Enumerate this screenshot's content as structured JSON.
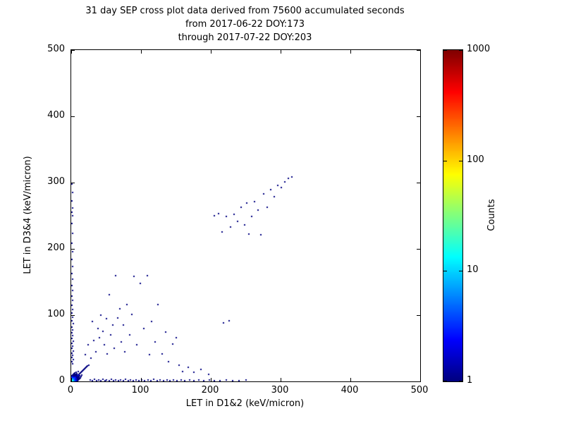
{
  "chart_data": {
    "type": "scatter",
    "title": "31 day SEP cross plot data derived from 75600 accumulated seconds",
    "subtitle1": "from 2017-06-22 DOY:173",
    "subtitle2": "through 2017-07-22 DOY:203",
    "xlabel": "LET in D1&2 (keV/micron)",
    "ylabel": "LET in D3&4 (keV/micron)",
    "xlim": [
      0,
      500
    ],
    "ylim": [
      0,
      500
    ],
    "x_ticks": [
      0,
      100,
      200,
      300,
      400,
      500
    ],
    "y_ticks": [
      0,
      100,
      200,
      300,
      400,
      500
    ],
    "grid": false,
    "colorbar": {
      "label": "Counts",
      "scale": "log",
      "range": [
        1,
        1000
      ],
      "ticks": [
        1,
        10,
        100,
        1000
      ],
      "colormap": "jet"
    },
    "marker_color_low": "#000080",
    "marker_color_high": "#800000",
    "points": [
      [
        0,
        0,
        30
      ],
      [
        1,
        0,
        25
      ],
      [
        0,
        1,
        25
      ],
      [
        1,
        1,
        22
      ],
      [
        2,
        0,
        20
      ],
      [
        0,
        2,
        20
      ],
      [
        2,
        1,
        18
      ],
      [
        1,
        2,
        18
      ],
      [
        2,
        2,
        15
      ],
      [
        3,
        0,
        14
      ],
      [
        0,
        3,
        14
      ],
      [
        3,
        1,
        12
      ],
      [
        1,
        3,
        12
      ],
      [
        3,
        2,
        10
      ],
      [
        2,
        3,
        10
      ],
      [
        3,
        3,
        9
      ],
      [
        4,
        0,
        9
      ],
      [
        0,
        4,
        9
      ],
      [
        4,
        1,
        8
      ],
      [
        1,
        4,
        8
      ],
      [
        4,
        2,
        7
      ],
      [
        2,
        4,
        7
      ],
      [
        4,
        3,
        6
      ],
      [
        3,
        4,
        6
      ],
      [
        4,
        4,
        6
      ],
      [
        5,
        0,
        6
      ],
      [
        0,
        5,
        6
      ],
      [
        5,
        1,
        5
      ],
      [
        1,
        5,
        5
      ],
      [
        5,
        2,
        5
      ],
      [
        2,
        5,
        5
      ],
      [
        5,
        3,
        4
      ],
      [
        3,
        5,
        4
      ],
      [
        5,
        5,
        4
      ],
      [
        6,
        0,
        4
      ],
      [
        0,
        6,
        4
      ],
      [
        6,
        2,
        3
      ],
      [
        2,
        6,
        3
      ],
      [
        6,
        4,
        3
      ],
      [
        4,
        6,
        3
      ],
      [
        6,
        6,
        3
      ],
      [
        7,
        1,
        3
      ],
      [
        1,
        7,
        3
      ],
      [
        7,
        3,
        2
      ],
      [
        3,
        7,
        2
      ],
      [
        7,
        5,
        2
      ],
      [
        5,
        7,
        2
      ],
      [
        7,
        7,
        2
      ],
      [
        8,
        0,
        2
      ],
      [
        0,
        8,
        2
      ],
      [
        8,
        2,
        2
      ],
      [
        2,
        8,
        2
      ],
      [
        8,
        4,
        2
      ],
      [
        4,
        8,
        2
      ],
      [
        8,
        6,
        1
      ],
      [
        6,
        8,
        1
      ],
      [
        8,
        8,
        2
      ],
      [
        9,
        1,
        1
      ],
      [
        1,
        9,
        1
      ],
      [
        9,
        3,
        1
      ],
      [
        3,
        9,
        1
      ],
      [
        9,
        5,
        1
      ],
      [
        5,
        9,
        1
      ],
      [
        9,
        7,
        1
      ],
      [
        7,
        9,
        1
      ],
      [
        9,
        9,
        2
      ],
      [
        10,
        2,
        1
      ],
      [
        2,
        10,
        1
      ],
      [
        10,
        5,
        1
      ],
      [
        5,
        10,
        1
      ],
      [
        10,
        8,
        1
      ],
      [
        8,
        10,
        1
      ],
      [
        10,
        10,
        2
      ],
      [
        11,
        3,
        1
      ],
      [
        3,
        11,
        1
      ],
      [
        11,
        6,
        1
      ],
      [
        6,
        11,
        1
      ],
      [
        11,
        11,
        1
      ],
      [
        12,
        4,
        1
      ],
      [
        4,
        12,
        1
      ],
      [
        12,
        8,
        1
      ],
      [
        8,
        12,
        1
      ],
      [
        12,
        12,
        1
      ],
      [
        13,
        5,
        1
      ],
      [
        5,
        13,
        1
      ],
      [
        13,
        13,
        1
      ],
      [
        14,
        7,
        1
      ],
      [
        7,
        14,
        1
      ],
      [
        14,
        14,
        1
      ],
      [
        15,
        10,
        1
      ],
      [
        10,
        15,
        1
      ],
      [
        15,
        15,
        1
      ],
      [
        16,
        16,
        1
      ],
      [
        17,
        17,
        1
      ],
      [
        18,
        18,
        1
      ],
      [
        19,
        19,
        1
      ],
      [
        20,
        20,
        1
      ],
      [
        21,
        21,
        1
      ],
      [
        22,
        22,
        1
      ],
      [
        23,
        23,
        1
      ],
      [
        25,
        25,
        1
      ],
      [
        27,
        2,
        1
      ],
      [
        30,
        1,
        1
      ],
      [
        33,
        3,
        1
      ],
      [
        36,
        1,
        1
      ],
      [
        39,
        2,
        1
      ],
      [
        42,
        1,
        1
      ],
      [
        45,
        3,
        1
      ],
      [
        48,
        1,
        1
      ],
      [
        51,
        2,
        1
      ],
      [
        55,
        1,
        1
      ],
      [
        58,
        3,
        1
      ],
      [
        61,
        1,
        1
      ],
      [
        64,
        2,
        1
      ],
      [
        68,
        1,
        1
      ],
      [
        71,
        2,
        1
      ],
      [
        75,
        1,
        1
      ],
      [
        78,
        3,
        1
      ],
      [
        82,
        1,
        1
      ],
      [
        85,
        2,
        1
      ],
      [
        89,
        1,
        1
      ],
      [
        93,
        2,
        1
      ],
      [
        97,
        1,
        1
      ],
      [
        101,
        2,
        1
      ],
      [
        105,
        1,
        1
      ],
      [
        110,
        2,
        1
      ],
      [
        114,
        1,
        1
      ],
      [
        118,
        3,
        1
      ],
      [
        123,
        1,
        1
      ],
      [
        127,
        2,
        1
      ],
      [
        132,
        1,
        1
      ],
      [
        137,
        2,
        1
      ],
      [
        141,
        1,
        1
      ],
      [
        146,
        2,
        1
      ],
      [
        152,
        1,
        1
      ],
      [
        158,
        2,
        1
      ],
      [
        163,
        1,
        1
      ],
      [
        170,
        2,
        1
      ],
      [
        176,
        1,
        1
      ],
      [
        183,
        2,
        1
      ],
      [
        190,
        1,
        1
      ],
      [
        198,
        2,
        1
      ],
      [
        205,
        1,
        1
      ],
      [
        213,
        1,
        1
      ],
      [
        222,
        2,
        1
      ],
      [
        231,
        1,
        1
      ],
      [
        240,
        1,
        1
      ],
      [
        250,
        2,
        1
      ],
      [
        2,
        27,
        1
      ],
      [
        1,
        30,
        1
      ],
      [
        3,
        33,
        1
      ],
      [
        1,
        36,
        1
      ],
      [
        2,
        39,
        1
      ],
      [
        1,
        43,
        1
      ],
      [
        3,
        46,
        1
      ],
      [
        1,
        50,
        1
      ],
      [
        2,
        53,
        1
      ],
      [
        1,
        57,
        1
      ],
      [
        3,
        61,
        1
      ],
      [
        1,
        65,
        1
      ],
      [
        2,
        69,
        1
      ],
      [
        1,
        73,
        1
      ],
      [
        2,
        78,
        1
      ],
      [
        1,
        82,
        1
      ],
      [
        3,
        87,
        1
      ],
      [
        1,
        92,
        1
      ],
      [
        2,
        97,
        1
      ],
      [
        1,
        103,
        1
      ],
      [
        2,
        109,
        1
      ],
      [
        1,
        115,
        1
      ],
      [
        2,
        122,
        1
      ],
      [
        1,
        129,
        1
      ],
      [
        2,
        137,
        1
      ],
      [
        1,
        145,
        1
      ],
      [
        2,
        154,
        1
      ],
      [
        1,
        163,
        1
      ],
      [
        2,
        173,
        1
      ],
      [
        1,
        184,
        1
      ],
      [
        2,
        196,
        1
      ],
      [
        1,
        209,
        1
      ],
      [
        2,
        223,
        1
      ],
      [
        1,
        238,
        1
      ],
      [
        2,
        250,
        1
      ],
      [
        1,
        255,
        1
      ],
      [
        2,
        262,
        1
      ],
      [
        1,
        272,
        1
      ],
      [
        2,
        285,
        1
      ],
      [
        1,
        298,
        1
      ],
      [
        20,
        40,
        1
      ],
      [
        24,
        55,
        1
      ],
      [
        28,
        35,
        1
      ],
      [
        30,
        90,
        1
      ],
      [
        32,
        62,
        1
      ],
      [
        35,
        45,
        1
      ],
      [
        38,
        80,
        1
      ],
      [
        40,
        66,
        1
      ],
      [
        42,
        100,
        1
      ],
      [
        45,
        76,
        1
      ],
      [
        47,
        55,
        1
      ],
      [
        50,
        95,
        1
      ],
      [
        52,
        41,
        1
      ],
      [
        55,
        131,
        1
      ],
      [
        57,
        70,
        1
      ],
      [
        60,
        85,
        1
      ],
      [
        62,
        50,
        1
      ],
      [
        64,
        160,
        1
      ],
      [
        67,
        96,
        1
      ],
      [
        70,
        110,
        1
      ],
      [
        72,
        60,
        1
      ],
      [
        75,
        85,
        1
      ],
      [
        77,
        45,
        1
      ],
      [
        80,
        116,
        1
      ],
      [
        84,
        70,
        1
      ],
      [
        87,
        101,
        1
      ],
      [
        90,
        158,
        1
      ],
      [
        94,
        55,
        1
      ],
      [
        99,
        148,
        1
      ],
      [
        104,
        80,
        1
      ],
      [
        109,
        160,
        1
      ],
      [
        112,
        40,
        1
      ],
      [
        115,
        90,
        1
      ],
      [
        120,
        60,
        1
      ],
      [
        124,
        116,
        1
      ],
      [
        130,
        41,
        1
      ],
      [
        135,
        75,
        1
      ],
      [
        139,
        30,
        1
      ],
      [
        145,
        56,
        1
      ],
      [
        150,
        66,
        1
      ],
      [
        155,
        24,
        1
      ],
      [
        160,
        15,
        1
      ],
      [
        168,
        21,
        1
      ],
      [
        176,
        14,
        1
      ],
      [
        186,
        18,
        1
      ],
      [
        197,
        11,
        1
      ],
      [
        218,
        88,
        1
      ],
      [
        226,
        92,
        1
      ],
      [
        205,
        250,
        1
      ],
      [
        211,
        253,
        1
      ],
      [
        216,
        226,
        1
      ],
      [
        222,
        249,
        1
      ],
      [
        228,
        233,
        1
      ],
      [
        233,
        252,
        1
      ],
      [
        238,
        241,
        1
      ],
      [
        243,
        263,
        1
      ],
      [
        248,
        236,
        1
      ],
      [
        252,
        269,
        1
      ],
      [
        255,
        222,
        1
      ],
      [
        259,
        249,
        1
      ],
      [
        263,
        271,
        1
      ],
      [
        268,
        259,
        1
      ],
      [
        272,
        221,
        1
      ],
      [
        276,
        283,
        1
      ],
      [
        281,
        263,
        1
      ],
      [
        286,
        289,
        1
      ],
      [
        291,
        279,
        1
      ],
      [
        296,
        296,
        1
      ],
      [
        301,
        293,
        1
      ],
      [
        306,
        301,
        1
      ],
      [
        311,
        306,
        1
      ],
      [
        316,
        309,
        1
      ]
    ]
  }
}
